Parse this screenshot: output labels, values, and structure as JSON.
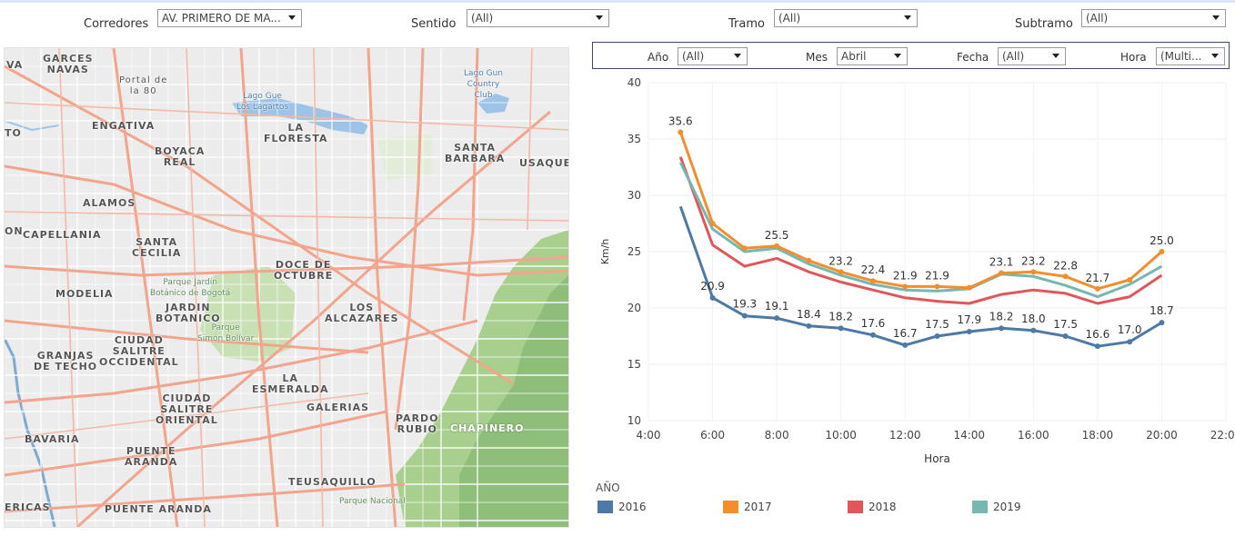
{
  "filters_top": {
    "corredores": {
      "label": "Corredores",
      "value": "AV. PRIMERO DE MA..."
    },
    "sentido": {
      "label": "Sentido",
      "value": "(All)"
    },
    "tramo": {
      "label": "Tramo",
      "value": "(All)"
    },
    "subtramo": {
      "label": "Subtramo",
      "value": "(All)"
    }
  },
  "filters_chart": {
    "ano": {
      "label": "Año",
      "value": "(All)"
    },
    "mes": {
      "label": "Mes",
      "value": "Abril"
    },
    "fecha": {
      "label": "Fecha",
      "value": "(All)"
    },
    "hora": {
      "label": "Hora",
      "value": "(Multi..."
    }
  },
  "map": {
    "labels": [
      {
        "text": "GARCES\nNAVAS"
      },
      {
        "text": "VA"
      },
      {
        "text": "Portal de\nla 80"
      },
      {
        "text": "ENGATIVA"
      },
      {
        "text": "TO"
      },
      {
        "text": "BOYACA\nREAL"
      },
      {
        "text": "Lago Gun\nCountry\nClub"
      },
      {
        "text": "Lago Gue\nLos Lagartos"
      },
      {
        "text": "LA\nFLORESTA"
      },
      {
        "text": "SANTA\nBARBARA"
      },
      {
        "text": "USAQUEI"
      },
      {
        "text": "ALAMOS"
      },
      {
        "text": "CAPELLANIA"
      },
      {
        "text": "ON"
      },
      {
        "text": "SANTA\nCECILIA"
      },
      {
        "text": "DOCE DE\nOCTUBRE"
      },
      {
        "text": "MODELIA"
      },
      {
        "text": "Parque Jardín\nBotánico de Bogotá"
      },
      {
        "text": "JARDIN\nBOTANICO"
      },
      {
        "text": "LOS\nALCAZARES"
      },
      {
        "text": "Parque\nSimón Bolívar"
      },
      {
        "text": "GRANJAS\nDE TECHO"
      },
      {
        "text": "CIUDAD\nSALITRE\nOCCIDENTAL"
      },
      {
        "text": "LA\nESMERALDA"
      },
      {
        "text": "GALERIAS"
      },
      {
        "text": "CIUDAD\nSALITRE\nORIENTAL"
      },
      {
        "text": "PARDO\nRUBIO"
      },
      {
        "text": "CHAPINERO"
      },
      {
        "text": "BAVARIA"
      },
      {
        "text": "PUENTE\nARANDA"
      },
      {
        "text": "TEUSAQUILLO"
      },
      {
        "text": "ERICAS"
      },
      {
        "text": "PUENTE ARANDA"
      },
      {
        "text": "Parque Nacional"
      }
    ]
  },
  "legend": {
    "title": "AÑO",
    "items": [
      {
        "label": "2016",
        "color": "#4e79a7"
      },
      {
        "label": "2017",
        "color": "#f28e2b"
      },
      {
        "label": "2018",
        "color": "#e15759"
      },
      {
        "label": "2019",
        "color": "#76b7b2"
      }
    ]
  },
  "chart_data": {
    "type": "line",
    "xlabel": "Hora",
    "ylabel": "Km/h",
    "xlim": [
      4,
      22
    ],
    "ylim": [
      10,
      40
    ],
    "xticks": [
      "4:00",
      "6:00",
      "8:00",
      "10:00",
      "12:00",
      "14:00",
      "16:00",
      "18:00",
      "20:00",
      "22:00"
    ],
    "yticks": [
      10,
      15,
      20,
      25,
      30,
      35,
      40
    ],
    "x": [
      5,
      6,
      7,
      8,
      9,
      10,
      11,
      12,
      13,
      14,
      15,
      16,
      17,
      18,
      19,
      20
    ],
    "series": [
      {
        "name": "2016",
        "color": "#4e79a7",
        "values": [
          29.0,
          20.9,
          19.3,
          19.1,
          18.4,
          18.2,
          17.6,
          16.7,
          17.5,
          17.9,
          18.2,
          18.0,
          17.5,
          16.6,
          17.0,
          18.7
        ],
        "labels": [
          null,
          "20.9",
          "19.3",
          "19.1",
          "18.4",
          "18.2",
          "17.6",
          "16.7",
          "17.5",
          "17.9",
          "18.2",
          "18.0",
          "17.5",
          "16.6",
          "17.0",
          "18.7"
        ]
      },
      {
        "name": "2017",
        "color": "#f28e2b",
        "values": [
          35.6,
          27.5,
          25.3,
          25.5,
          24.2,
          23.2,
          22.4,
          21.9,
          21.9,
          21.8,
          23.1,
          23.2,
          22.8,
          21.7,
          22.5,
          25.0
        ],
        "labels": [
          "35.6",
          null,
          null,
          "25.5",
          null,
          "23.2",
          "22.4",
          "21.9",
          "21.9",
          null,
          "23.1",
          "23.2",
          "22.8",
          "21.7",
          null,
          "25.0"
        ]
      },
      {
        "name": "2018",
        "color": "#e15759",
        "values": [
          33.4,
          25.6,
          23.7,
          24.4,
          23.2,
          22.3,
          21.6,
          20.9,
          20.6,
          20.4,
          21.2,
          21.6,
          21.3,
          20.4,
          21.0,
          22.9
        ],
        "labels": []
      },
      {
        "name": "2019",
        "color": "#76b7b2",
        "values": [
          32.9,
          27.0,
          25.0,
          25.3,
          23.9,
          22.9,
          22.1,
          21.6,
          21.5,
          21.7,
          23.0,
          22.8,
          22.0,
          21.0,
          22.1,
          23.7
        ],
        "labels": []
      }
    ]
  }
}
